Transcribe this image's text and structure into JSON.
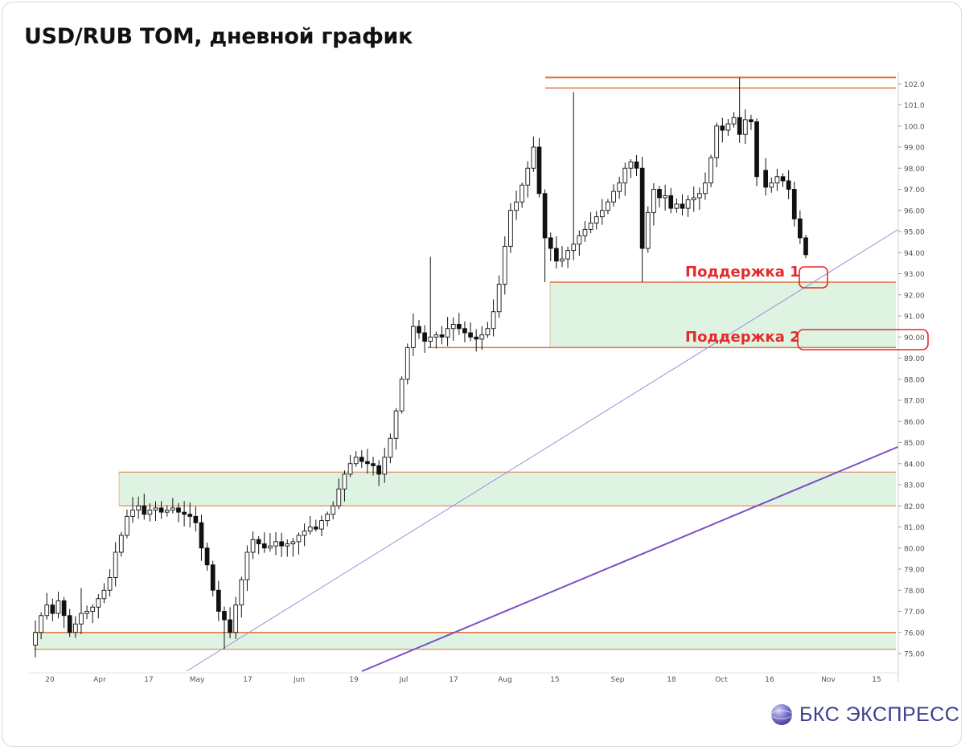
{
  "title": "USD/RUB TOM, дневной график",
  "brand": {
    "name": "БКС ЭКСПРЕСС",
    "logo_icon": "bks-sphere-logo-icon"
  },
  "colors": {
    "level": "#e2733a",
    "zone_fill": "#dff3e2",
    "trend_thin": "#9a8fd4",
    "trend_thick": "#7b4fc2",
    "label": "#e52a28",
    "candle": "#111111"
  },
  "chart_data": {
    "type": "candlestick",
    "y_ticks": [
      "75.00",
      "76.00",
      "77.00",
      "78.00",
      "79.00",
      "80.00",
      "81.00",
      "82.00",
      "83.00",
      "84.00",
      "85.00",
      "86.00",
      "87.00",
      "88.00",
      "89.00",
      "90.00",
      "91.00",
      "92.00",
      "93.00",
      "94.00",
      "95.00",
      "96.00",
      "97.00",
      "98.00",
      "99.00",
      "100.0",
      "101.0",
      "102.0"
    ],
    "x_ticks": [
      "20",
      "Apr",
      "17",
      "May",
      "17",
      "Jun",
      "19",
      "Jul",
      "17",
      "Aug",
      "15",
      "Sep",
      "18",
      "Oct",
      "16",
      "Nov",
      "15"
    ],
    "close_series": [
      76.0,
      76.8,
      77.3,
      76.9,
      77.5,
      76.8,
      76.0,
      76.4,
      76.9,
      77.0,
      77.2,
      77.6,
      78.0,
      78.6,
      79.8,
      80.6,
      81.5,
      81.8,
      82.0,
      81.6,
      81.8,
      81.9,
      81.7,
      81.8,
      81.9,
      81.7,
      81.6,
      81.5,
      81.2,
      80.0,
      79.2,
      78.0,
      77.0,
      76.6,
      76.0,
      77.3,
      78.5,
      79.8,
      80.4,
      80.2,
      80.0,
      80.1,
      80.3,
      80.1,
      80.2,
      80.3,
      80.6,
      80.8,
      81.0,
      80.9,
      81.3,
      81.6,
      82.0,
      82.8,
      83.5,
      84.0,
      84.3,
      84.1,
      84.0,
      83.9,
      83.5,
      84.3,
      85.2,
      86.5,
      88.0,
      89.5,
      90.5,
      90.2,
      89.8,
      90.0,
      90.1,
      90.0,
      90.4,
      90.6,
      90.4,
      90.2,
      90.0,
      89.9,
      90.1,
      90.4,
      91.2,
      92.5,
      94.3,
      96.0,
      96.4,
      97.2,
      98.0,
      99.0,
      96.8,
      94.7,
      94.2,
      93.6,
      93.7,
      94.1,
      94.4,
      94.8,
      95.1,
      95.4,
      95.7,
      96.0,
      96.4,
      96.9,
      97.3,
      98.0,
      98.3,
      98.0,
      94.2,
      95.9,
      97.0,
      96.6,
      96.7,
      96.1,
      96.3,
      96.1,
      96.5,
      96.6,
      96.8,
      97.3,
      98.5,
      100.0,
      99.8,
      100.1,
      100.4,
      99.6,
      100.3,
      100.2,
      97.6,
      97.1,
      97.3,
      97.6,
      97.4,
      97.0,
      95.6,
      94.7,
      93.9
    ],
    "levels": [
      102.3,
      101.8,
      92.6,
      89.5,
      83.6,
      82.0,
      76.0,
      75.2
    ],
    "support_zones": [
      {
        "from": 89.5,
        "to": 92.6,
        "start": "Aug 13"
      },
      {
        "from": 82.0,
        "to": 83.6,
        "start": "Apr 7"
      },
      {
        "from": 75.2,
        "to": 76.0,
        "start": "Mar 13"
      }
    ],
    "trendlines": [
      {
        "style": "thin",
        "y_start": 75.0,
        "y_end": 95.1
      },
      {
        "style": "thick",
        "y_start": 75.0,
        "y_end": 84.8
      }
    ],
    "annotations": [
      {
        "text": "Поддержка 1",
        "level": 92.6
      },
      {
        "text": "Поддержка 2",
        "level": 89.5
      }
    ]
  }
}
